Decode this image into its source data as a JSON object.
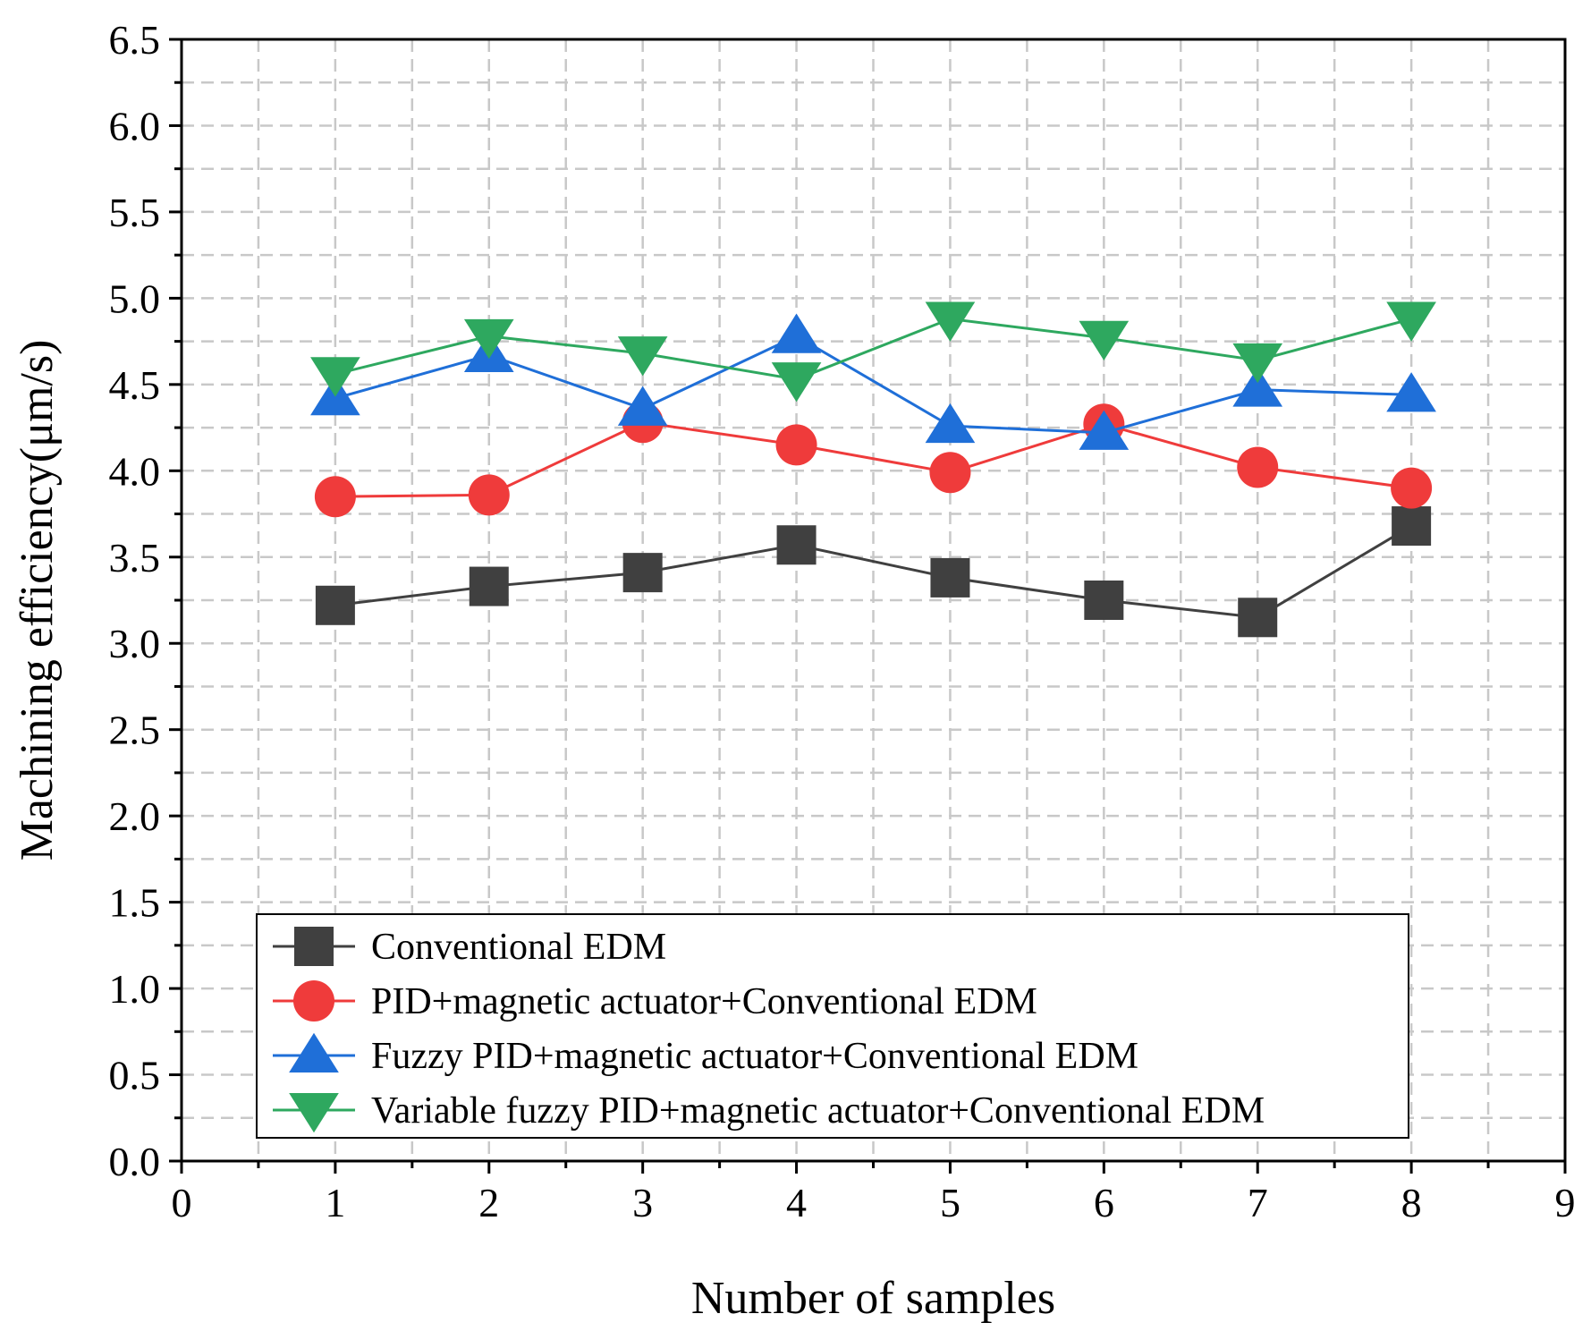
{
  "chart_data": {
    "type": "line",
    "title": "",
    "xlabel": "Number of samples",
    "ylabel": "Machining efficiency(μm/s)",
    "xlim": [
      0,
      9
    ],
    "ylim": [
      0,
      6.5
    ],
    "xticks": [
      "0",
      "1",
      "2",
      "3",
      "4",
      "5",
      "6",
      "7",
      "8",
      "9"
    ],
    "yticks": [
      "0.0",
      "0.5",
      "1.0",
      "1.5",
      "2.0",
      "2.5",
      "3.0",
      "3.5",
      "4.0",
      "4.5",
      "5.0",
      "5.5",
      "6.0",
      "6.5"
    ],
    "grid": true,
    "legend_position": "bottom-center",
    "x": [
      1,
      2,
      3,
      4,
      5,
      6,
      7,
      8
    ],
    "series": [
      {
        "name": "Conventional EDM",
        "color": "#404040",
        "marker": "square",
        "values": [
          3.22,
          3.33,
          3.41,
          3.57,
          3.38,
          3.25,
          3.15,
          3.68
        ]
      },
      {
        "name": "PID+magnetic actuator+Conventional EDM",
        "color": "#ef3b3b",
        "marker": "circle",
        "values": [
          3.85,
          3.86,
          4.28,
          4.15,
          3.99,
          4.27,
          4.02,
          3.9
        ]
      },
      {
        "name": "Fuzzy PID+magnetic actuator+Conventional EDM",
        "color": "#1f6fd8",
        "marker": "triangle-up",
        "values": [
          4.42,
          4.67,
          4.36,
          4.78,
          4.26,
          4.22,
          4.47,
          4.44
        ]
      },
      {
        "name": "Variable fuzzy PID+magnetic actuator+Conventional EDM",
        "color": "#2ea85f",
        "marker": "triangle-down",
        "values": [
          4.56,
          4.78,
          4.68,
          4.53,
          4.88,
          4.77,
          4.64,
          4.88
        ]
      }
    ]
  }
}
